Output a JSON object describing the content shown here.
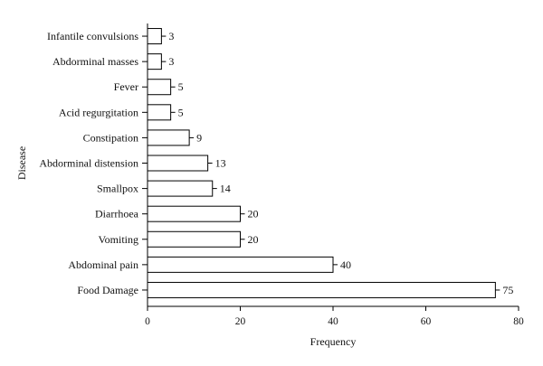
{
  "chart_data": {
    "type": "bar",
    "orientation": "horizontal",
    "categories": [
      "Infantile convulsions",
      "Abdorminal masses",
      "Fever",
      "Acid regurgitation",
      "Constipation",
      "Abdorminal distension",
      "Smallpox",
      "Diarrhoea",
      "Vomiting",
      "Abdominal pain",
      "Food Damage"
    ],
    "values": [
      3,
      3,
      5,
      5,
      9,
      13,
      14,
      20,
      20,
      40,
      75
    ],
    "data_labels": [
      "3",
      "3",
      "5",
      "5",
      "9",
      "13",
      "14",
      "20",
      "20",
      "40",
      "75"
    ],
    "xlabel": "Frequency",
    "ylabel": "Disease",
    "xlim": [
      0,
      80
    ],
    "xticks": [
      "0",
      "20",
      "40",
      "60",
      "80"
    ],
    "grid": false,
    "bar_fill": "#ffffff",
    "bar_stroke": "#000000"
  }
}
